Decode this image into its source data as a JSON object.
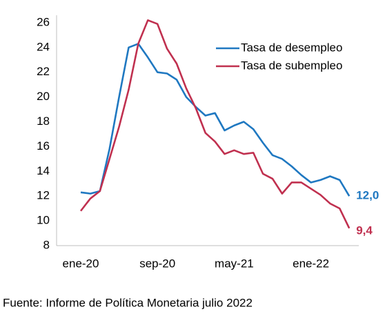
{
  "chart_data": {
    "type": "line",
    "categories": [
      "ene-20",
      null,
      null,
      null,
      null,
      null,
      null,
      null,
      "sep-20",
      null,
      null,
      null,
      null,
      null,
      null,
      null,
      "may-21",
      null,
      null,
      null,
      null,
      null,
      null,
      null,
      "ene-22",
      null,
      null,
      null,
      null
    ],
    "series": [
      {
        "name": "Tasa de desempleo",
        "color": "#1f78c1",
        "values": [
          12.3,
          12.2,
          12.4,
          15.8,
          20.0,
          24.0,
          24.3,
          23.2,
          22.0,
          21.9,
          21.4,
          20.0,
          19.2,
          18.5,
          18.7,
          17.3,
          17.7,
          18.0,
          17.4,
          16.3,
          15.3,
          15.0,
          14.4,
          13.7,
          13.1,
          13.3,
          13.6,
          13.3,
          12.0
        ],
        "value_labels": [
          null,
          null,
          null,
          null,
          null,
          null,
          null,
          null,
          null,
          null,
          null,
          null,
          null,
          null,
          null,
          null,
          null,
          null,
          null,
          null,
          null,
          null,
          null,
          null,
          null,
          null,
          null,
          null,
          "12,0"
        ]
      },
      {
        "name": "Tasa de subempleo",
        "color": "#c0304f",
        "values": [
          10.8,
          11.8,
          12.4,
          15.0,
          17.6,
          20.6,
          24.3,
          26.2,
          25.9,
          23.9,
          22.7,
          20.7,
          19.1,
          17.1,
          16.4,
          15.4,
          15.7,
          15.4,
          15.5,
          13.8,
          13.4,
          12.2,
          13.1,
          13.1,
          12.6,
          12.1,
          11.4,
          11.0,
          9.4
        ],
        "value_labels": [
          null,
          null,
          null,
          null,
          null,
          null,
          null,
          null,
          null,
          null,
          null,
          null,
          null,
          null,
          null,
          null,
          null,
          null,
          null,
          null,
          null,
          null,
          null,
          null,
          null,
          null,
          null,
          null,
          "9,4"
        ]
      }
    ],
    "ylim": [
      8,
      26.6
    ],
    "yticks": [
      8,
      10,
      12,
      14,
      16,
      18,
      20,
      22,
      24,
      26
    ],
    "grid": false,
    "legend": "upper right",
    "source": "Fuente: Informe de Política Monetaria julio 2022"
  }
}
